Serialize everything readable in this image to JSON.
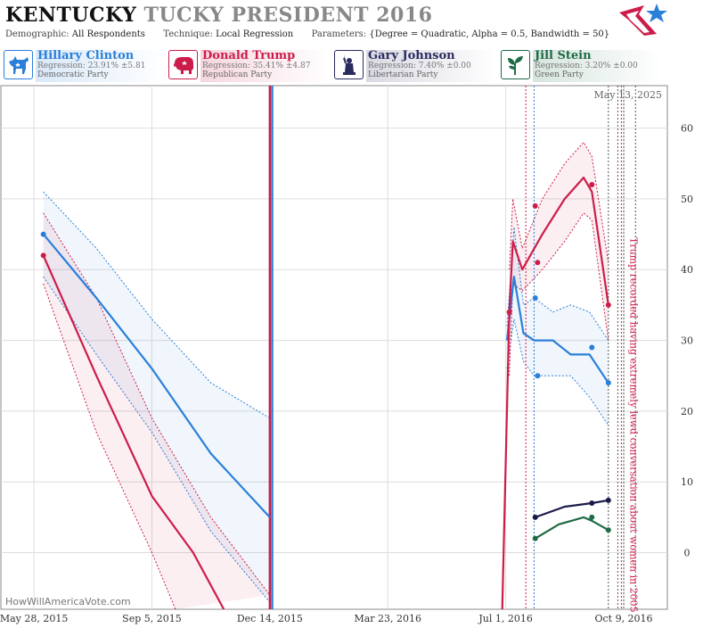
{
  "header": {
    "title_bold": "KENTUCKY",
    "title_light": "TUCKY PRESIDENT 2016",
    "demographic_label": "Demographic:",
    "demographic_value": "All Respondents",
    "technique_label": "Technique:",
    "technique_value": "Local Regression",
    "parameters_label": "Parameters:",
    "parameters_value": "{Degree = Quadratic, Alpha = 0.5, Bandwidth = 50}"
  },
  "candidates": [
    {
      "name": "Hillary Clinton",
      "regression": "Regression: 23.91% ±5.81",
      "party": "Democratic Party",
      "color": "#2a7fd9",
      "icon": "donkey-icon"
    },
    {
      "name": "Donald Trump",
      "regression": "Regression: 35.41% ±4.87",
      "party": "Republican Party",
      "color": "#cc1d4a",
      "icon": "elephant-icon"
    },
    {
      "name": "Gary Johnson",
      "regression": "Regression: 7.40% ±0.00",
      "party": "Libertarian Party",
      "color": "#2a2b5e",
      "icon": "liberty-statue-icon"
    },
    {
      "name": "Jill Stein",
      "regression": "Regression: 3.20% ±0.00",
      "party": "Green Party",
      "color": "#1e6b45",
      "icon": "plant-icon"
    }
  ],
  "datestamp": "May 13, 2025",
  "watermark": "HowWillAmericaVote.com",
  "chart_data": {
    "type": "line",
    "x_axis": {
      "type": "date",
      "range": [
        "2015-04-30",
        "2016-11-15"
      ],
      "ticks": [
        {
          "date": "2015-05-28",
          "label": "May 28, 2015"
        },
        {
          "date": "2015-09-05",
          "label": "Sep 5, 2015"
        },
        {
          "date": "2015-12-14",
          "label": "Dec 14, 2015"
        },
        {
          "date": "2016-03-23",
          "label": "Mar 23, 2016"
        },
        {
          "date": "2016-07-01",
          "label": "Jul 1, 2016"
        },
        {
          "date": "2016-10-09",
          "label": "Oct 9, 2016"
        }
      ]
    },
    "y_axis": {
      "range": [
        -8,
        66
      ],
      "ticks": [
        0,
        10,
        20,
        30,
        40,
        50,
        60
      ],
      "position": "right"
    },
    "grid": {
      "vertical": true,
      "horizontal": true
    },
    "annotation": {
      "text": "Trump recorded having extremely lewd conversation about women in 2005",
      "date": "2016-10-07"
    },
    "event_lines": [
      {
        "date": "2015-12-14",
        "color": "#cc1d4a",
        "style": "solid"
      },
      {
        "date": "2015-12-16",
        "color": "#2a7fd9",
        "style": "solid"
      },
      {
        "date": "2016-07-18",
        "color": "#cc1d4a",
        "style": "dashed"
      },
      {
        "date": "2016-07-25",
        "color": "#2a7fd9",
        "style": "dashed"
      },
      {
        "date": "2016-09-26",
        "color": "#555555",
        "style": "dashed"
      },
      {
        "date": "2016-10-04",
        "color": "#555555",
        "style": "dashed"
      },
      {
        "date": "2016-10-07",
        "color": "#cc1d4a",
        "style": "dashed"
      },
      {
        "date": "2016-10-09",
        "color": "#555555",
        "style": "dashed"
      },
      {
        "date": "2016-10-19",
        "color": "#555555",
        "style": "dashed"
      }
    ],
    "series": [
      {
        "name": "Hillary Clinton",
        "color": "#2a7fd9",
        "segments": [
          {
            "line": [
              [
                "2015-06-05",
                45
              ],
              [
                "2015-07-20",
                36
              ],
              [
                "2015-09-05",
                26
              ],
              [
                "2015-10-25",
                14
              ],
              [
                "2015-12-14",
                5
              ]
            ],
            "upper": [
              [
                "2015-06-05",
                51
              ],
              [
                "2015-07-20",
                43
              ],
              [
                "2015-09-05",
                33
              ],
              [
                "2015-10-25",
                24
              ],
              [
                "2015-12-14",
                19
              ]
            ],
            "lower": [
              [
                "2015-06-05",
                39
              ],
              [
                "2015-07-20",
                28
              ],
              [
                "2015-09-05",
                17
              ],
              [
                "2015-10-25",
                3
              ],
              [
                "2015-12-14",
                -7
              ]
            ]
          },
          {
            "line": [
              [
                "2016-07-02",
                30
              ],
              [
                "2016-07-08",
                39
              ],
              [
                "2016-07-16",
                31
              ],
              [
                "2016-07-25",
                30
              ],
              [
                "2016-08-10",
                30
              ],
              [
                "2016-08-25",
                28
              ],
              [
                "2016-09-10",
                28
              ],
              [
                "2016-09-26",
                24
              ]
            ],
            "upper": [
              [
                "2016-07-02",
                32
              ],
              [
                "2016-07-08",
                46
              ],
              [
                "2016-07-16",
                35
              ],
              [
                "2016-07-25",
                36
              ],
              [
                "2016-08-10",
                34
              ],
              [
                "2016-08-25",
                35
              ],
              [
                "2016-09-10",
                34
              ],
              [
                "2016-09-26",
                30
              ]
            ],
            "lower": [
              [
                "2016-07-02",
                26
              ],
              [
                "2016-07-08",
                33
              ],
              [
                "2016-07-16",
                27
              ],
              [
                "2016-07-25",
                25
              ],
              [
                "2016-08-10",
                25
              ],
              [
                "2016-08-25",
                25
              ],
              [
                "2016-09-10",
                22
              ],
              [
                "2016-09-26",
                18
              ]
            ]
          }
        ],
        "points": [
          [
            "2015-06-05",
            45
          ],
          [
            "2016-07-26",
            36
          ],
          [
            "2016-07-28",
            25
          ],
          [
            "2016-09-12",
            29
          ],
          [
            "2016-09-26",
            24
          ]
        ]
      },
      {
        "name": "Donald Trump",
        "color": "#cc1d4a",
        "segments": [
          {
            "line": [
              [
                "2015-06-05",
                42
              ],
              [
                "2015-07-20",
                25
              ],
              [
                "2015-09-05",
                8
              ],
              [
                "2015-10-10",
                0
              ],
              [
                "2015-11-05",
                -8
              ]
            ],
            "upper": [
              [
                "2015-06-05",
                48
              ],
              [
                "2015-07-20",
                36
              ],
              [
                "2015-09-05",
                19
              ],
              [
                "2015-10-25",
                5
              ],
              [
                "2015-12-14",
                -6
              ]
            ],
            "lower": [
              [
                "2015-06-05",
                38
              ],
              [
                "2015-07-20",
                17
              ],
              [
                "2015-09-05",
                0
              ],
              [
                "2015-09-25",
                -8
              ]
            ]
          },
          {
            "line": [
              [
                "2016-06-28",
                -8
              ],
              [
                "2016-07-04",
                34
              ],
              [
                "2016-07-07",
                44
              ],
              [
                "2016-07-15",
                40
              ],
              [
                "2016-08-01",
                45
              ],
              [
                "2016-08-20",
                50
              ],
              [
                "2016-09-05",
                53
              ],
              [
                "2016-09-12",
                51
              ],
              [
                "2016-09-26",
                35
              ]
            ],
            "upper": [
              [
                "2016-07-04",
                40
              ],
              [
                "2016-07-07",
                50
              ],
              [
                "2016-07-15",
                43
              ],
              [
                "2016-08-01",
                50
              ],
              [
                "2016-08-20",
                55
              ],
              [
                "2016-09-05",
                58
              ],
              [
                "2016-09-12",
                56
              ],
              [
                "2016-09-26",
                41
              ]
            ],
            "lower": [
              [
                "2016-07-04",
                25
              ],
              [
                "2016-07-07",
                38
              ],
              [
                "2016-07-15",
                37
              ],
              [
                "2016-08-01",
                40
              ],
              [
                "2016-08-20",
                44
              ],
              [
                "2016-09-05",
                48
              ],
              [
                "2016-09-12",
                47
              ],
              [
                "2016-09-26",
                30
              ]
            ]
          }
        ],
        "points": [
          [
            "2015-06-05",
            42
          ],
          [
            "2016-07-04",
            34
          ],
          [
            "2016-07-26",
            49
          ],
          [
            "2016-07-28",
            41
          ],
          [
            "2016-09-12",
            52
          ],
          [
            "2016-09-26",
            35
          ]
        ]
      },
      {
        "name": "Gary Johnson",
        "color": "#1a1a4a",
        "segments": [
          {
            "line": [
              [
                "2016-07-26",
                5
              ],
              [
                "2016-08-20",
                6.5
              ],
              [
                "2016-09-12",
                7
              ],
              [
                "2016-09-26",
                7.4
              ]
            ]
          }
        ],
        "points": [
          [
            "2016-07-26",
            5
          ],
          [
            "2016-09-12",
            7
          ],
          [
            "2016-09-26",
            7.4
          ]
        ]
      },
      {
        "name": "Jill Stein",
        "color": "#1e6b45",
        "segments": [
          {
            "line": [
              [
                "2016-07-26",
                2
              ],
              [
                "2016-08-15",
                4
              ],
              [
                "2016-09-05",
                5
              ],
              [
                "2016-09-12",
                4.5
              ],
              [
                "2016-09-26",
                3.2
              ]
            ]
          }
        ],
        "points": [
          [
            "2016-07-26",
            2
          ],
          [
            "2016-09-12",
            5
          ],
          [
            "2016-09-26",
            3.2
          ]
        ]
      }
    ]
  }
}
